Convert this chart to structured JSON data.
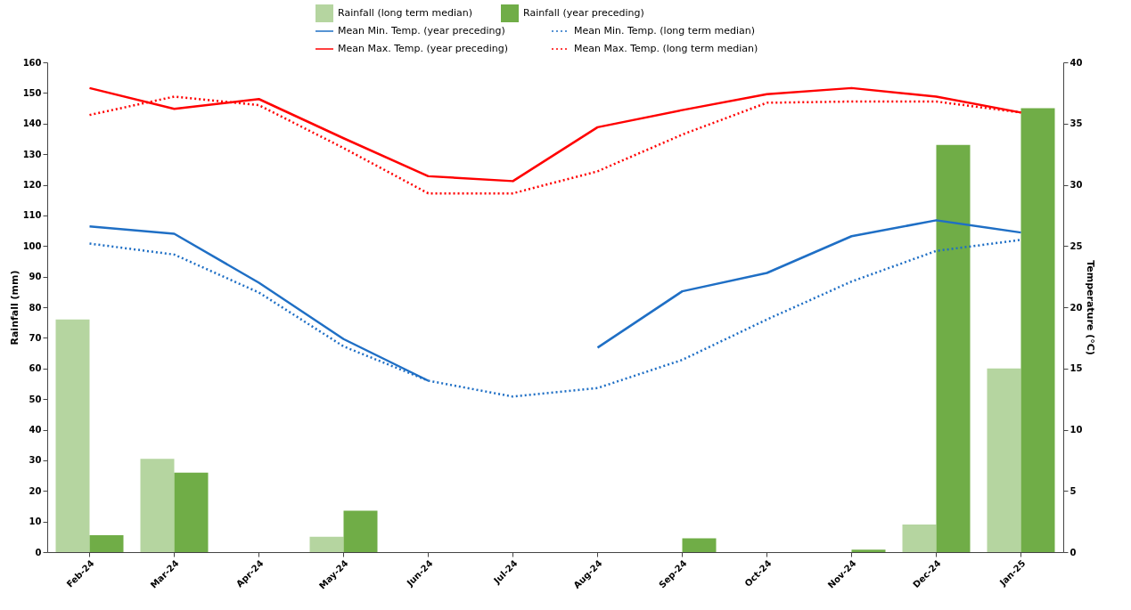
{
  "chart_data": {
    "type": "bar",
    "ylabel": "Rainfall (mm)",
    "y2label": "Temperature (°C)",
    "categories": [
      "Feb-24",
      "Mar-24",
      "Apr-24",
      "May-24",
      "Jun-24",
      "Jul-24",
      "Aug-24",
      "Sep-24",
      "Oct-24",
      "Nov-24",
      "Dec-24",
      "Jan-25"
    ],
    "ylim": [
      0,
      160
    ],
    "yticks": [
      0,
      10,
      20,
      30,
      40,
      50,
      60,
      70,
      80,
      90,
      100,
      110,
      120,
      130,
      140,
      150,
      160
    ],
    "y2lim": [
      0,
      40
    ],
    "y2ticks": [
      0,
      5,
      10,
      15,
      20,
      25,
      30,
      35,
      40
    ],
    "grid": false,
    "legend": "top",
    "series": [
      {
        "name": "Rainfall (long term median)",
        "color": "#b5d5a0",
        "values": [
          76,
          30.5,
          0,
          5,
          0,
          0,
          0,
          0,
          0,
          0,
          9,
          60
        ]
      },
      {
        "name": "Rainfall (year preceding)",
        "color": "#70ad47",
        "values": [
          5.5,
          26,
          0,
          13.5,
          0,
          0,
          0,
          4.5,
          0,
          0.8,
          133,
          145
        ]
      },
      {
        "name": "Mean Min. Temp. (year preceding)",
        "type": "line",
        "axis": "y2",
        "line_style": "solid",
        "color": "#1f6fc5",
        "values": [
          26.6,
          26.0,
          22.0,
          17.4,
          14.0,
          null,
          16.7,
          21.3,
          22.8,
          25.8,
          27.1,
          26.1
        ]
      },
      {
        "name": "Mean Min. Temp. (long term median)",
        "type": "line",
        "axis": "y2",
        "line_style": "dotted",
        "color": "#1f6fc5",
        "values": [
          25.2,
          24.3,
          21.2,
          16.8,
          14.0,
          12.7,
          13.4,
          15.7,
          19.0,
          22.1,
          24.6,
          25.5
        ]
      },
      {
        "name": "Mean Max. Temp. (year preceding)",
        "type": "line",
        "axis": "y2",
        "line_style": "solid",
        "color": "#ff0000",
        "values": [
          37.9,
          36.2,
          37.0,
          33.8,
          30.7,
          30.3,
          34.7,
          36.1,
          37.4,
          37.9,
          37.2,
          35.9
        ]
      },
      {
        "name": "Mean Max. Temp. (long term median)",
        "type": "line",
        "axis": "y2",
        "line_style": "dotted",
        "color": "#ff0000",
        "values": [
          35.7,
          37.2,
          36.5,
          33.0,
          29.3,
          29.3,
          31.1,
          34.1,
          36.7,
          36.8,
          36.8,
          35.9
        ]
      }
    ]
  }
}
